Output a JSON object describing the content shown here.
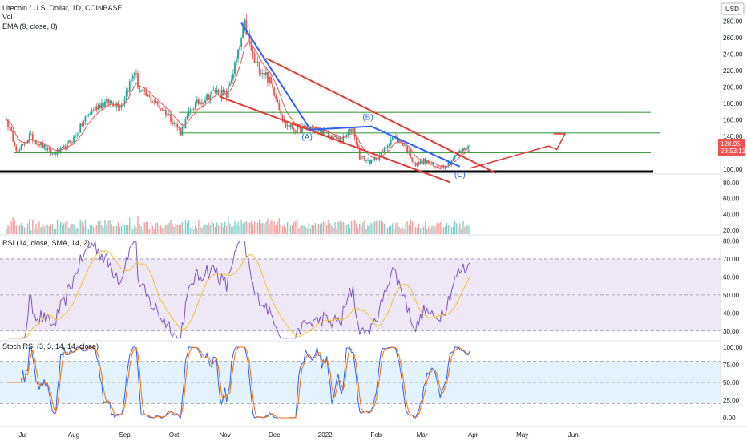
{
  "legend": {
    "title": "Litecoin / U.S. Dollar, 1D, COINBASE",
    "volume": "Vol",
    "ema": "EMA (9, close, 0)",
    "rsi": "RSI (14, close, SMA, 14, 2)",
    "stoch": "Stoch RSI (3, 3, 14, 14, close)"
  },
  "currency_badge": "USD",
  "price_tag": {
    "price": "128.95",
    "countdown": "23:53:13"
  },
  "colors": {
    "up": "#26a69a",
    "down": "#ef5350",
    "ema": "#ef5350",
    "channel": "#e53935",
    "wave": "#2962ff",
    "support": "#43a047",
    "floor": "#000000",
    "rsi": "#7e57c2",
    "rsi_ma": "#fbc02d",
    "stoch_k": "#2962ff",
    "stoch_d": "#ff6d00",
    "band_rsi": "#ede7f6",
    "band_stoch": "#e3f2fd"
  },
  "chart_data": [
    {
      "type": "candlestick",
      "title": "Litecoin / U.S. Dollar, 1D, COINBASE",
      "x_ticks": [
        "Jul",
        "Aug",
        "Sep",
        "Oct",
        "Nov",
        "Dec",
        "2022",
        "Feb",
        "Mar",
        "Apr",
        "May",
        "Jun"
      ],
      "y_ticks": [
        "100.00",
        "120.00",
        "140.00",
        "160.00",
        "180.00",
        "200.00",
        "220.00",
        "240.00",
        "260.00",
        "280.00"
      ],
      "ylim": [
        95,
        300
      ],
      "close_path": [
        [
          "Jun 20",
          160
        ],
        [
          "Jun 27",
          120
        ],
        [
          "Jul 4",
          140
        ],
        [
          "Jul 11",
          130
        ],
        [
          "Jul 18",
          118
        ],
        [
          "Jul 25",
          125
        ],
        [
          "Aug 1",
          140
        ],
        [
          "Aug 8",
          165
        ],
        [
          "Aug 15",
          178
        ],
        [
          "Aug 22",
          182
        ],
        [
          "Aug 29",
          178
        ],
        [
          "Sep 6",
          220
        ],
        [
          "Sep 9",
          195
        ],
        [
          "Sep 20",
          178
        ],
        [
          "Sep 27",
          165
        ],
        [
          "Oct 4",
          145
        ],
        [
          "Oct 11",
          175
        ],
        [
          "Oct 18",
          185
        ],
        [
          "Oct 25",
          195
        ],
        [
          "Nov 1",
          190
        ],
        [
          "Nov 8",
          240
        ],
        [
          "Nov 12",
          275
        ],
        [
          "Nov 18",
          230
        ],
        [
          "Nov 25",
          215
        ],
        [
          "Dec 1",
          190
        ],
        [
          "Dec 6",
          155
        ],
        [
          "Dec 13",
          148
        ],
        [
          "Dec 20",
          150
        ],
        [
          "Dec 27",
          148
        ],
        [
          "Jan 3",
          140
        ],
        [
          "Jan 10",
          135
        ],
        [
          "Jan 17",
          150
        ],
        [
          "Jan 21",
          115
        ],
        [
          "Jan 28",
          108
        ],
        [
          "Feb 4",
          120
        ],
        [
          "Feb 10",
          140
        ],
        [
          "Feb 17",
          130
        ],
        [
          "Feb 24",
          105
        ],
        [
          "Mar 1",
          110
        ],
        [
          "Mar 8",
          102
        ],
        [
          "Mar 15",
          105
        ],
        [
          "Mar 22",
          120
        ],
        [
          "Mar 29",
          128.95
        ]
      ],
      "ema": {
        "name": "EMA (9, close, 0)",
        "period": 9
      },
      "annotations": {
        "labels": [
          "(A)",
          "(B)",
          "(C)"
        ],
        "support_levels": [
          169,
          144,
          120
        ],
        "floor_level": 97,
        "projection_target": 143
      }
    },
    {
      "type": "bar",
      "name": "Vol",
      "y_ticks": [
        "20.00",
        "40.00",
        "60.00",
        "80.00"
      ],
      "ylim": [
        15,
        90
      ]
    },
    {
      "type": "line",
      "name": "RSI (14, close, SMA, 14, 2)",
      "y_ticks": [
        "30.00",
        "40.00",
        "50.00",
        "60.00",
        "70.00",
        "80.00"
      ],
      "ylim": [
        25,
        82
      ],
      "bands": [
        30,
        50,
        70
      ]
    },
    {
      "type": "line",
      "name": "Stoch RSI (3, 3, 14, 14, close)",
      "y_ticks": [
        "0.00",
        "25.00",
        "50.00",
        "75.00",
        "100.00"
      ],
      "ylim": [
        -8,
        108
      ],
      "bands": [
        20,
        50,
        80
      ]
    }
  ]
}
